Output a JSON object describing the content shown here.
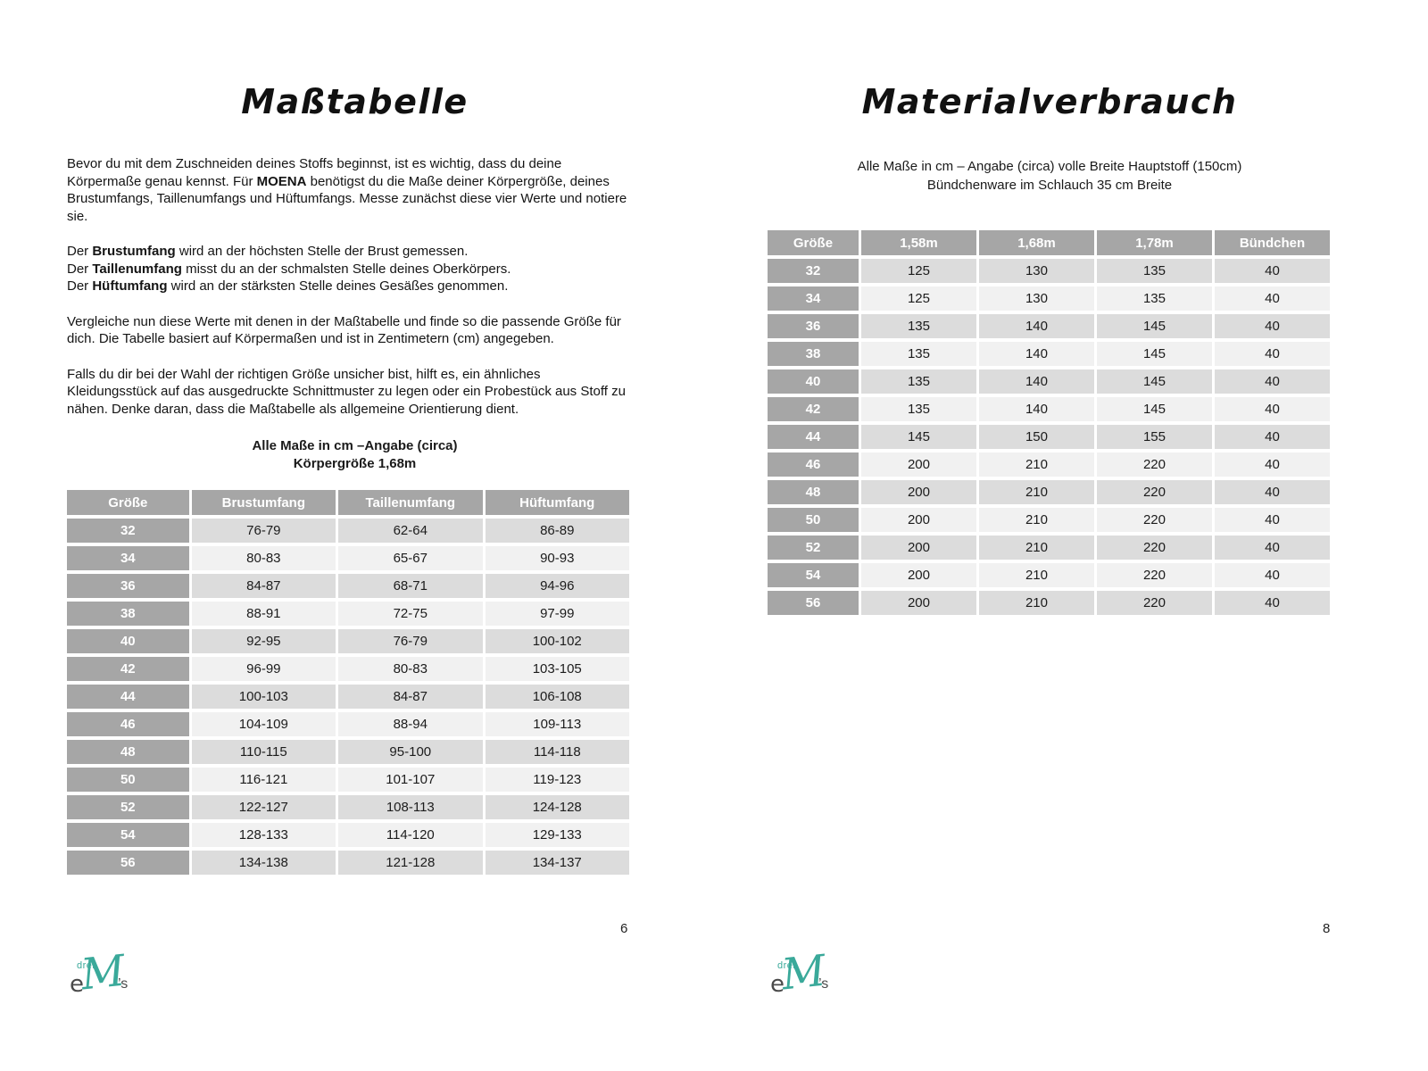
{
  "page_left": {
    "title": "Maßtabelle",
    "page_number": "6",
    "intro": {
      "p1_pre": "Bevor du mit dem Zuschneiden deines Stoffs beginnst, ist es wichtig, dass du deine Körpermaße genau kennst. Für ",
      "p1_bold": "MOENA",
      "p1_post": " benötigst du die Maße deiner Körpergröße, deines Brustumfangs, Taillenumfangs und Hüftumfangs. Messe zunächst diese vier Werte und notiere sie."
    },
    "measure_lines": [
      {
        "pre": "Der ",
        "bold": "Brustumfang",
        "post": " wird an der höchsten Stelle der Brust gemessen."
      },
      {
        "pre": "Der ",
        "bold": "Taillenumfang",
        "post": " misst du an der schmalsten Stelle deines Oberkörpers."
      },
      {
        "pre": "Der ",
        "bold": "Hüftumfang",
        "post": " wird an der stärksten Stelle deines Gesäßes genommen."
      }
    ],
    "p3": "Vergleiche nun diese Werte mit denen in der Maßtabelle und finde so die passende Größe für dich. Die Tabelle basiert auf Körpermaßen und ist in Zentimetern (cm) angegeben.",
    "p4": "Falls du dir bei der Wahl der richtigen Größe unsicher bist, hilft es, ein ähnliches Kleidungsstück auf das ausgedruckte Schnittmuster zu legen oder ein Probestück aus Stoff zu nähen. Denke daran, dass die Maßtabelle als allgemeine Orientierung dient.",
    "caption_line1": "Alle Maße in cm –Angabe (circa)",
    "caption_line2": "Körpergröße 1,68m",
    "size_table": {
      "headers": [
        "Größe",
        "Brustumfang",
        "Taillenumfang",
        "Hüftumfang"
      ],
      "rows": [
        [
          "32",
          "76-79",
          "62-64",
          "86-89"
        ],
        [
          "34",
          "80-83",
          "65-67",
          "90-93"
        ],
        [
          "36",
          "84-87",
          "68-71",
          "94-96"
        ],
        [
          "38",
          "88-91",
          "72-75",
          "97-99"
        ],
        [
          "40",
          "92-95",
          "76-79",
          "100-102"
        ],
        [
          "42",
          "96-99",
          "80-83",
          "103-105"
        ],
        [
          "44",
          "100-103",
          "84-87",
          "106-108"
        ],
        [
          "46",
          "104-109",
          "88-94",
          "109-113"
        ],
        [
          "48",
          "110-115",
          "95-100",
          "114-118"
        ],
        [
          "50",
          "116-121",
          "101-107",
          "119-123"
        ],
        [
          "52",
          "122-127",
          "108-113",
          "124-128"
        ],
        [
          "54",
          "128-133",
          "114-120",
          "129-133"
        ],
        [
          "56",
          "134-138",
          "121-128",
          "134-137"
        ]
      ]
    }
  },
  "page_right": {
    "title": "Materialverbrauch",
    "page_number": "8",
    "subtitle_line1": "Alle Maße in cm – Angabe (circa) volle Breite Hauptstoff (150cm)",
    "subtitle_line2": "Bündchenware im Schlauch 35 cm Breite",
    "material_table": {
      "headers": [
        "Größe",
        "1,58m",
        "1,68m",
        "1,78m",
        "Bündchen"
      ],
      "rows": [
        [
          "32",
          "125",
          "130",
          "135",
          "40"
        ],
        [
          "34",
          "125",
          "130",
          "135",
          "40"
        ],
        [
          "36",
          "135",
          "140",
          "145",
          "40"
        ],
        [
          "38",
          "135",
          "140",
          "145",
          "40"
        ],
        [
          "40",
          "135",
          "140",
          "145",
          "40"
        ],
        [
          "42",
          "135",
          "140",
          "145",
          "40"
        ],
        [
          "44",
          "145",
          "150",
          "155",
          "40"
        ],
        [
          "46",
          "200",
          "210",
          "220",
          "40"
        ],
        [
          "48",
          "200",
          "210",
          "220",
          "40"
        ],
        [
          "50",
          "200",
          "210",
          "220",
          "40"
        ],
        [
          "52",
          "200",
          "210",
          "220",
          "40"
        ],
        [
          "54",
          "200",
          "210",
          "220",
          "40"
        ],
        [
          "56",
          "200",
          "210",
          "220",
          "40"
        ]
      ]
    }
  },
  "logo": {
    "drei": "drei",
    "e": "e",
    "m": "M",
    "s": "’s",
    "teal": "#3aa99a",
    "dark": "#4a4a4a"
  },
  "colors": {
    "table_header_gray": "#a6a6a6",
    "row_dark": "#dcdcdc",
    "row_light": "#f1f1f1"
  }
}
